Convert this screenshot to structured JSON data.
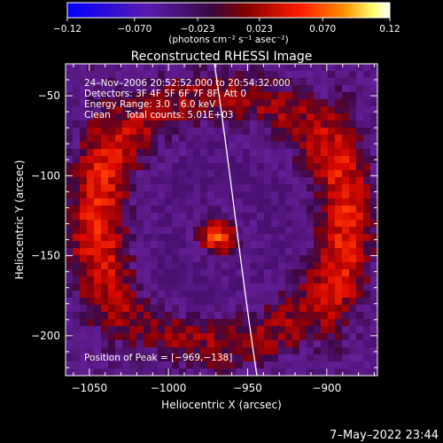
{
  "chart_data": {
    "type": "heatmap",
    "title": "Reconstructed RHESSI Image",
    "xlabel": "Heliocentric X (arcsec)",
    "ylabel": "Heliocentric Y (arcsec)",
    "xlim": [
      -1065,
      -868
    ],
    "ylim": [
      -225,
      -30
    ],
    "xticks": [
      -1050,
      -1000,
      -950,
      -900
    ],
    "yticks": [
      -50,
      -100,
      -150,
      -200
    ],
    "xtick_labels": [
      "−1050",
      "−1000",
      "−950",
      "−900"
    ],
    "ytick_labels": [
      "−50",
      "−100",
      "−150",
      "−200"
    ],
    "colorbar": {
      "ticks": [
        -0.12,
        -0.07,
        -0.023,
        0.023,
        0.07,
        0.12
      ],
      "tick_labels": [
        "−0.12",
        "−0.070",
        "−0.023",
        "0.023",
        "0.070",
        "0.12"
      ],
      "range": [
        -0.12,
        0.12
      ],
      "units_label": "(photons cm⁻² s⁻¹ asec⁻²)",
      "colormap": [
        "#0000ff",
        "#6a1aa0",
        "#4a1070",
        "#8a0010",
        "#ff0000",
        "#ff8000",
        "#ffff60",
        "#ffffff"
      ]
    },
    "annotations": [
      "24–Nov–2006 20:52:52.000 to 20:54:32.000",
      "Detectors: 3F 4F 5F 6F 7F 8F, Att 0",
      "Energy Range: 3.0 – 6.0 keV",
      "Clean     Total counts: 5.01E+03"
    ],
    "peak": {
      "label": "Position of Peak = [−969,−138]",
      "x": -969,
      "y": -138
    },
    "limb_color": "#ffffff",
    "timestamp": "7–May–2022 23:44"
  }
}
